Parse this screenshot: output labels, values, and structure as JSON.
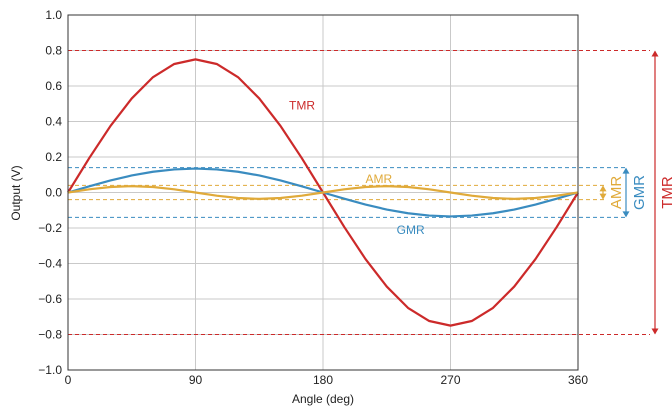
{
  "chart_data": {
    "type": "line",
    "title": "",
    "xlabel": "Angle (deg)",
    "ylabel": "Output (V)",
    "xlim": [
      0,
      360
    ],
    "ylim": [
      -1.0,
      1.0
    ],
    "xticks": [
      0,
      90,
      180,
      270,
      360
    ],
    "xtick_labels": [
      "0",
      "90",
      "180",
      "270",
      "360"
    ],
    "yticks": [
      1.0,
      0.8,
      0.6,
      0.4,
      0.2,
      0.0,
      -0.2,
      -0.4,
      -0.6,
      -0.8,
      -1.0
    ],
    "ytick_labels": [
      "1.0",
      "0.8",
      "0.6",
      "0.4",
      "0.2",
      "0.0",
      "−0.2",
      "−0.4",
      "−0.6",
      "−0.8",
      "−1.0"
    ],
    "grid": true,
    "x": [
      0,
      15,
      30,
      45,
      60,
      75,
      90,
      105,
      120,
      135,
      150,
      165,
      180,
      195,
      210,
      225,
      240,
      255,
      270,
      285,
      300,
      315,
      330,
      345,
      360
    ],
    "series": [
      {
        "name": "TMR",
        "color": "#cc2a2a",
        "values": [
          0.0,
          0.194,
          0.375,
          0.53,
          0.65,
          0.724,
          0.75,
          0.724,
          0.65,
          0.53,
          0.375,
          0.194,
          0.0,
          -0.194,
          -0.375,
          -0.53,
          -0.65,
          -0.724,
          -0.75,
          -0.724,
          -0.65,
          -0.53,
          -0.375,
          -0.194,
          0.0
        ],
        "label_text": "TMR",
        "label_pos": [
          156,
          0.49
        ]
      },
      {
        "name": "GMR",
        "color": "#3a8cc0",
        "values": [
          0.0,
          0.035,
          0.068,
          0.096,
          0.117,
          0.13,
          0.135,
          0.13,
          0.117,
          0.096,
          0.068,
          0.035,
          0.0,
          -0.035,
          -0.068,
          -0.096,
          -0.117,
          -0.13,
          -0.135,
          -0.13,
          -0.117,
          -0.096,
          -0.068,
          -0.035,
          0.0
        ],
        "label_text": "GMR",
        "label_pos": [
          232,
          -0.21
        ]
      },
      {
        "name": "AMR",
        "color": "#e0aa3a",
        "values": [
          0.0,
          0.018,
          0.031,
          0.036,
          0.031,
          0.018,
          0.0,
          -0.018,
          -0.031,
          -0.036,
          -0.031,
          -0.018,
          0.0,
          0.018,
          0.031,
          0.036,
          0.031,
          0.018,
          0.0,
          -0.018,
          -0.031,
          -0.036,
          -0.031,
          -0.018,
          0.0
        ],
        "label_text": "AMR",
        "label_pos": [
          210,
          0.075
        ]
      }
    ],
    "reference_lines": [
      {
        "series": "TMR",
        "y": 0.8,
        "color": "#cc2a2a"
      },
      {
        "series": "TMR",
        "y": -0.8,
        "color": "#cc2a2a"
      },
      {
        "series": "GMR",
        "y": 0.14,
        "color": "#3a8cc0"
      },
      {
        "series": "GMR",
        "y": -0.14,
        "color": "#3a8cc0"
      },
      {
        "series": "AMR",
        "y": 0.04,
        "color": "#e0aa3a"
      },
      {
        "series": "AMR",
        "y": -0.04,
        "color": "#e0aa3a"
      }
    ],
    "range_arrows": [
      {
        "name": "AMR",
        "y1": 0.04,
        "y2": -0.04,
        "color": "#e0aa3a"
      },
      {
        "name": "GMR",
        "y1": 0.14,
        "y2": -0.14,
        "color": "#3a8cc0"
      },
      {
        "name": "TMR",
        "y1": 0.8,
        "y2": -0.8,
        "color": "#cc2a2a"
      }
    ]
  }
}
